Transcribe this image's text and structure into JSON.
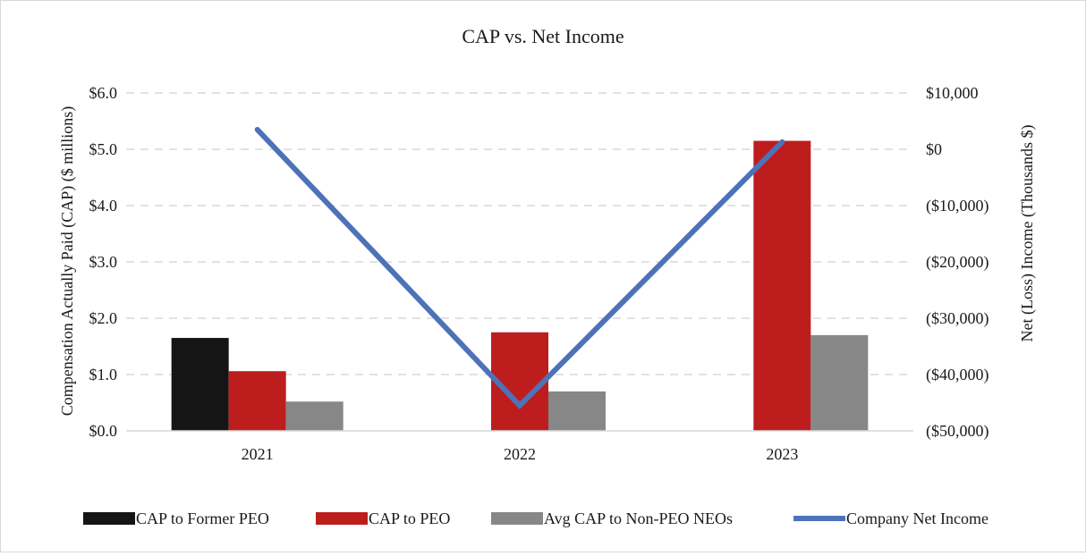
{
  "chart_data": {
    "type": "bar",
    "title": "CAP vs. Net Income",
    "categories": [
      "2021",
      "2022",
      "2023"
    ],
    "ylabel": "Compensation Actually Paid (CAP) ($ millions)",
    "y2label": "Net (Loss) Income (Thousands $)",
    "ylim": [
      0,
      6
    ],
    "y2lim": [
      -50000,
      10000
    ],
    "yticks": [
      "$0.0",
      "$1.0",
      "$2.0",
      "$3.0",
      "$4.0",
      "$5.0",
      "$6.0"
    ],
    "y2ticks": [
      "($50,000)",
      "($40,000)",
      "($30,000)",
      "($20,000)",
      "($10,000)",
      "$0",
      "$10,000"
    ],
    "grid": true,
    "legend_position": "bottom",
    "series": [
      {
        "name": "CAP to Former PEO",
        "type": "bar",
        "axis": "left",
        "color": "#151515",
        "values": [
          1.65,
          null,
          null
        ]
      },
      {
        "name": "CAP to PEO",
        "type": "bar",
        "axis": "left",
        "color": "#bd1d1d",
        "values": [
          1.06,
          1.75,
          5.15
        ]
      },
      {
        "name": "Avg CAP to Non-PEO NEOs",
        "type": "bar",
        "axis": "left",
        "color": "#878787",
        "values": [
          0.52,
          0.7,
          1.7
        ]
      },
      {
        "name": "Company Net Income",
        "type": "line",
        "axis": "right",
        "color": "#4e72b8",
        "values": [
          3500,
          -45500,
          1300
        ]
      }
    ]
  }
}
